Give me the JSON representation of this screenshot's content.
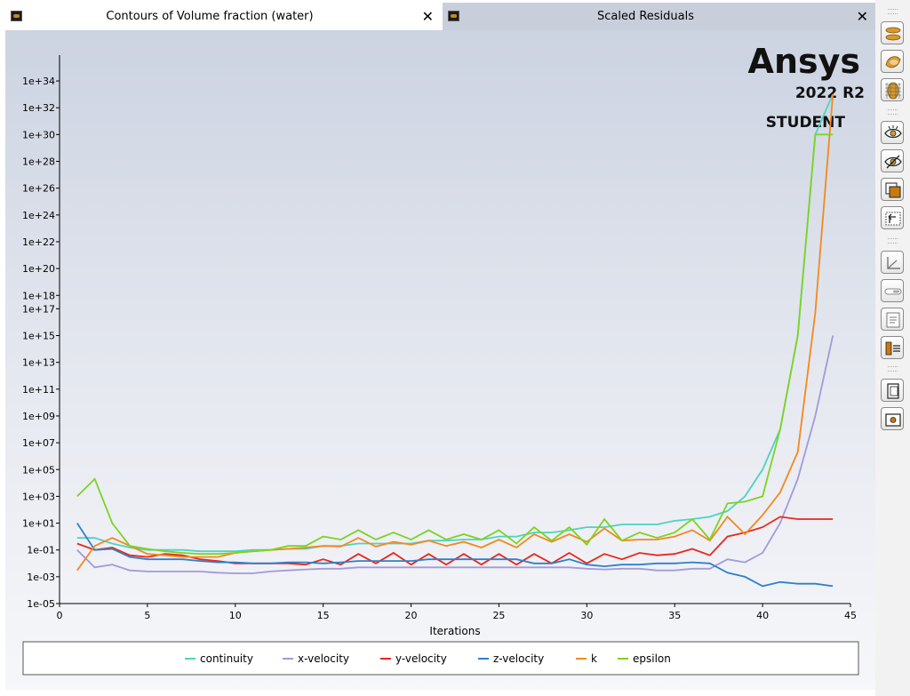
{
  "tabs": [
    {
      "title": "Contours of Volume fraction (water)",
      "close": "✕"
    },
    {
      "title": "Scaled Residuals",
      "close": "✕"
    }
  ],
  "brand": {
    "name": "Ansys",
    "version": "2022 R2",
    "edition": "STUDENT"
  },
  "chart_data": {
    "type": "line",
    "xlabel": "Iterations",
    "ylabel": "",
    "yscale": "log",
    "xlim": [
      0,
      45
    ],
    "ylim_exponents": [
      -5,
      35
    ],
    "x_ticks": [
      0,
      5,
      10,
      15,
      20,
      25,
      30,
      35,
      40,
      45
    ],
    "y_ticks": [
      "1e-05",
      "1e-03",
      "1e-01",
      "1e+01",
      "1e+03",
      "1e+05",
      "1e+07",
      "1e+09",
      "1e+11",
      "1e+13",
      "1e+15",
      "1e+17",
      "1e+18",
      "1e+20",
      "1e+22",
      "1e+24",
      "1e+26",
      "1e+28",
      "1e+30",
      "1e+32",
      "1e+34"
    ],
    "legend_position": "bottom",
    "grid": false,
    "x": [
      1,
      2,
      3,
      4,
      5,
      6,
      7,
      8,
      9,
      10,
      11,
      12,
      13,
      14,
      15,
      16,
      17,
      18,
      19,
      20,
      21,
      22,
      23,
      24,
      25,
      26,
      27,
      28,
      29,
      30,
      31,
      32,
      33,
      34,
      35,
      36,
      37,
      38,
      39,
      40,
      41,
      42,
      43,
      44
    ],
    "series": [
      {
        "name": "continuity",
        "color": "#4dd3c0",
        "values": [
          0.8,
          0.8,
          0.3,
          0.15,
          0.1,
          0.1,
          0.1,
          0.08,
          0.08,
          0.08,
          0.1,
          0.1,
          0.12,
          0.12,
          0.2,
          0.2,
          0.3,
          0.3,
          0.3,
          0.3,
          0.5,
          0.5,
          0.6,
          0.6,
          1,
          1,
          2,
          2,
          3,
          5,
          5,
          8,
          8,
          8,
          15,
          20,
          30,
          80,
          1000,
          100000,
          100000000.0,
          1000000000000000.0,
          1e+30,
          1e+33
        ]
      },
      {
        "name": "x-velocity",
        "color": "#a29ad8",
        "values": [
          0.1,
          0.005,
          0.008,
          0.003,
          0.0025,
          0.0025,
          0.0025,
          0.0025,
          0.002,
          0.0018,
          0.0018,
          0.0025,
          0.003,
          0.0035,
          0.004,
          0.004,
          0.005,
          0.005,
          0.005,
          0.005,
          0.005,
          0.005,
          0.005,
          0.005,
          0.005,
          0.005,
          0.005,
          0.005,
          0.005,
          0.004,
          0.0035,
          0.004,
          0.004,
          0.003,
          0.003,
          0.004,
          0.004,
          0.02,
          0.012,
          0.06,
          10,
          20000,
          1000000000.0,
          1000000000000000.0
        ]
      },
      {
        "name": "y-velocity",
        "color": "#e8281c",
        "values": [
          0.3,
          0.1,
          0.15,
          0.04,
          0.03,
          0.05,
          0.04,
          0.02,
          0.015,
          0.01,
          0.01,
          0.01,
          0.01,
          0.008,
          0.02,
          0.008,
          0.05,
          0.01,
          0.06,
          0.008,
          0.05,
          0.008,
          0.05,
          0.008,
          0.05,
          0.008,
          0.05,
          0.01,
          0.06,
          0.01,
          0.05,
          0.02,
          0.06,
          0.04,
          0.05,
          0.12,
          0.04,
          1,
          2,
          5,
          30,
          20,
          20,
          20
        ]
      },
      {
        "name": "z-velocity",
        "color": "#2f80c8",
        "values": [
          10,
          0.1,
          0.12,
          0.03,
          0.02,
          0.02,
          0.02,
          0.015,
          0.012,
          0.012,
          0.01,
          0.01,
          0.012,
          0.012,
          0.01,
          0.012,
          0.015,
          0.015,
          0.015,
          0.015,
          0.02,
          0.02,
          0.02,
          0.02,
          0.02,
          0.02,
          0.01,
          0.01,
          0.02,
          0.008,
          0.006,
          0.008,
          0.008,
          0.01,
          0.01,
          0.012,
          0.01,
          0.002,
          0.001,
          0.0002,
          0.0004,
          0.0003,
          0.0003,
          0.0002
        ]
      },
      {
        "name": "k",
        "color": "#f2891e",
        "values": [
          0.003,
          0.2,
          0.8,
          0.2,
          0.05,
          0.04,
          0.03,
          0.03,
          0.03,
          0.06,
          0.08,
          0.1,
          0.12,
          0.15,
          0.2,
          0.18,
          0.8,
          0.18,
          0.4,
          0.25,
          0.5,
          0.2,
          0.4,
          0.15,
          0.6,
          0.15,
          1.5,
          0.4,
          1.5,
          0.4,
          4,
          0.5,
          0.6,
          0.6,
          1,
          3,
          0.5,
          30,
          1.5,
          40,
          2000,
          2000000.0,
          5e+16,
          1e+33
        ]
      },
      {
        "name": "epsilon",
        "color": "#7ed321",
        "values": [
          1000,
          20000,
          10,
          0.2,
          0.12,
          0.08,
          0.06,
          0.05,
          0.05,
          0.06,
          0.08,
          0.1,
          0.2,
          0.2,
          1,
          0.6,
          3,
          0.6,
          2,
          0.6,
          3,
          0.6,
          1.5,
          0.6,
          3,
          0.3,
          5,
          0.5,
          5,
          0.25,
          20,
          0.5,
          2,
          0.8,
          2,
          20,
          0.6,
          300,
          400,
          1000,
          100000000.0,
          1000000000000000.0,
          1e+30,
          1e+30
        ]
      }
    ]
  },
  "toolbar": [
    {
      "name": "toolbar-front-view-button",
      "icon": "front-view-icon"
    },
    {
      "name": "toolbar-surface-view-button",
      "icon": "surface-view-icon"
    },
    {
      "name": "toolbar-mesh-view-button",
      "icon": "mesh-view-icon"
    },
    {
      "name": "toolbar-show-button",
      "icon": "eye-icon"
    },
    {
      "name": "toolbar-hide-button",
      "icon": "eye-hidden-icon"
    },
    {
      "name": "toolbar-overlay-button",
      "icon": "overlay-icon"
    },
    {
      "name": "toolbar-rotate-button",
      "icon": "rotate-icon"
    },
    {
      "name": "toolbar-axes-button",
      "icon": "axes-icon"
    },
    {
      "name": "toolbar-ruler-button",
      "icon": "ruler-icon"
    },
    {
      "name": "toolbar-notes-button",
      "icon": "notes-icon"
    },
    {
      "name": "toolbar-colormap-button",
      "icon": "colormap-icon"
    },
    {
      "name": "toolbar-copy-button",
      "icon": "copy-icon"
    },
    {
      "name": "toolbar-snapshot-button",
      "icon": "camera-icon"
    }
  ]
}
